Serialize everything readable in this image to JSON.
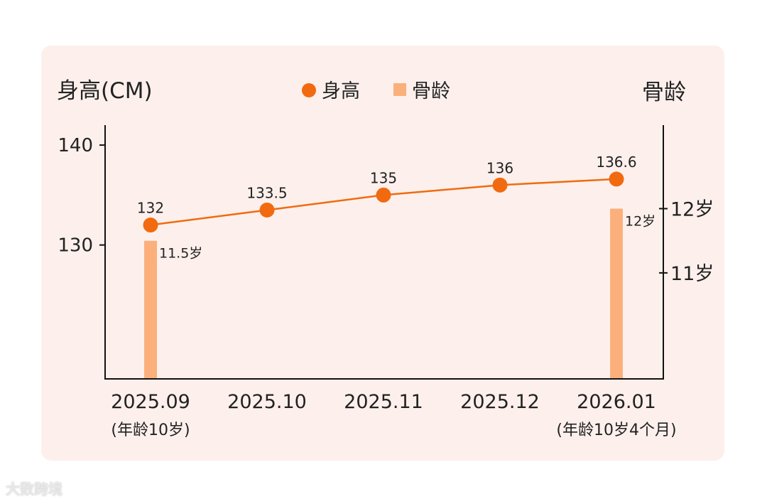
{
  "chart_data": {
    "type": "bar+line",
    "left_axis_title": "身高(CM)",
    "right_axis_title": "骨龄",
    "legend": [
      {
        "label": "身高",
        "marker": "circle",
        "color": "#f26a10"
      },
      {
        "label": "骨龄",
        "marker": "square",
        "color": "#fbb07c"
      }
    ],
    "legend_placement": "top-center",
    "categories": [
      "2025.09",
      "2025.10",
      "2025.11",
      "2025.12",
      "2026.01"
    ],
    "category_sublabels": [
      "(年龄10岁)",
      "",
      "",
      "",
      "(年龄10岁4个月)"
    ],
    "height": {
      "name": "身高",
      "values": [
        132,
        133.5,
        135,
        136,
        136.6
      ],
      "labels": [
        "132",
        "133.5",
        "135",
        "136",
        "136.6"
      ],
      "color": "#f26a10"
    },
    "bone_age": {
      "name": "骨龄",
      "values": [
        11.5,
        null,
        null,
        null,
        12
      ],
      "labels": [
        "11.5岁",
        "",
        "",
        "",
        "12岁"
      ],
      "color": "#fbb07c"
    },
    "left_axis": {
      "ticks": [
        130,
        140
      ],
      "tick_labels": [
        "130",
        "140"
      ],
      "range": [
        116.6,
        142
      ]
    },
    "right_axis": {
      "ticks": [
        11,
        12
      ],
      "tick_labels": [
        "11岁",
        "12岁"
      ],
      "range": [
        9.35,
        13.3
      ]
    },
    "grid": false
  },
  "watermark": "大数跨境"
}
